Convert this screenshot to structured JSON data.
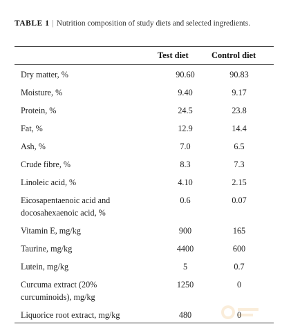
{
  "table": {
    "label": "TABLE 1",
    "separator": "|",
    "caption": "Nutrition composition of study diets and selected ingredients.",
    "columns": [
      "Test diet",
      "Control diet"
    ],
    "rows": [
      {
        "name": "Dry matter, %",
        "test": "90.60",
        "control": "90.83"
      },
      {
        "name": "Moisture, %",
        "test": "9.40",
        "control": "9.17"
      },
      {
        "name": "Protein, %",
        "test": "24.5",
        "control": "23.8"
      },
      {
        "name": "Fat, %",
        "test": "12.9",
        "control": "14.4"
      },
      {
        "name": "Ash, %",
        "test": "7.0",
        "control": "6.5"
      },
      {
        "name": "Crude fibre, %",
        "test": "8.3",
        "control": "7.3"
      },
      {
        "name": "Linoleic acid, %",
        "test": "4.10",
        "control": "2.15"
      },
      {
        "name": "Eicosapentaenoic acid and docosahexaenoic acid, %",
        "test": "0.6",
        "control": "0.07"
      },
      {
        "name": "Vitamin E, mg/kg",
        "test": "900",
        "control": "165"
      },
      {
        "name": "Taurine, mg/kg",
        "test": "4400",
        "control": "600"
      },
      {
        "name": "Lutein, mg/kg",
        "test": "5",
        "control": "0.7"
      },
      {
        "name": "Curcuma extract (20% curcuminoids), mg/kg",
        "test": "1250",
        "control": "0"
      },
      {
        "name": "Liquorice root extract, mg/kg",
        "test": "480",
        "control": "0"
      }
    ]
  },
  "colors": {
    "rule": "#333333",
    "text": "#222222"
  }
}
